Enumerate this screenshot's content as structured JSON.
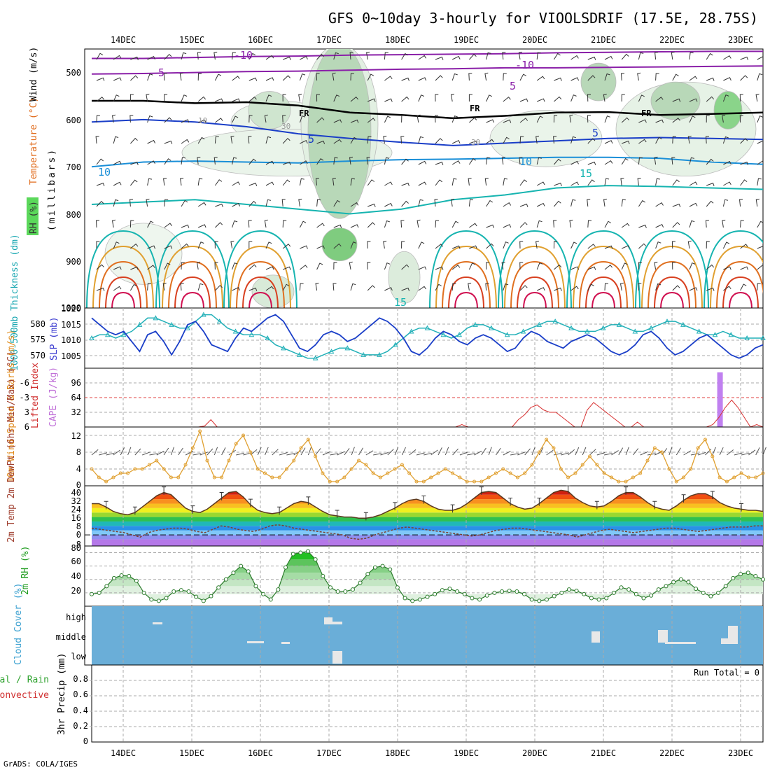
{
  "chart_data": {
    "type": "meteogram",
    "title": "GFS 0~10day 3-hourly for VIOOLSDRIF (17.5E, 28.75S)",
    "footer": "GrADS: COLA/IGES",
    "x_dates": [
      "14DEC",
      "15DEC",
      "16DEC",
      "17DEC",
      "18DEC",
      "19DEC",
      "20DEC",
      "21DEC",
      "22DEC",
      "23DEC"
    ],
    "panels": {
      "upper_air": {
        "ylabel_parts": [
          "RH (%)",
          "Temperature (°C)",
          "Wind (m/s)"
        ],
        "ylabel_unit": "(millibars)",
        "pressure_ticks": [
          "500",
          "600",
          "700",
          "800",
          "900",
          "1000"
        ],
        "pressure_range": [
          450,
          1000
        ],
        "contour_labels": [
          "-10",
          "-10",
          "5",
          "5",
          "5",
          "5",
          "10",
          "10",
          "15",
          "15",
          "FR",
          "FR",
          "FR",
          "30",
          "30",
          "10"
        ],
        "isotherms_mb": {
          "minus10": [
            470,
            470,
            468,
            466,
            465,
            463,
            462,
            461,
            460,
            458,
            457,
            456,
            455,
            455
          ],
          "minus5": [
            503,
            502,
            500,
            498,
            497,
            495,
            493,
            492,
            490,
            490,
            489,
            488,
            487,
            486
          ],
          "freezing": [
            560,
            560,
            565,
            563,
            570,
            585,
            590,
            597,
            592,
            585,
            584,
            590,
            588,
            585
          ],
          "plus5": [
            605,
            600,
            605,
            615,
            630,
            640,
            648,
            655,
            650,
            645,
            640,
            638,
            640,
            642
          ],
          "plus10": [
            700,
            690,
            688,
            690,
            692,
            688,
            685,
            684,
            682,
            680,
            680,
            682,
            690,
            695
          ],
          "plus15": [
            780,
            775,
            770,
            780,
            790,
            800,
            790,
            770,
            760,
            745,
            740,
            742,
            745,
            748
          ]
        }
      },
      "slp_thickness": {
        "ylabel_left": "1000-500mb Thickness (dm)",
        "ylabel_right": "SLP (mb)",
        "slp_ticks": [
          "1005",
          "1010",
          "1015",
          "1020"
        ],
        "thickness_ticks": [
          "570",
          "575",
          "580"
        ],
        "slp_range": [
          1002,
          1020
        ],
        "thickness_range": [
          566,
          584
        ],
        "slp": [
          1017,
          1015,
          1013,
          1012,
          1013,
          1010,
          1007,
          1012,
          1013,
          1010,
          1006,
          1010,
          1015,
          1016,
          1013,
          1009,
          1008,
          1007,
          1011,
          1014,
          1013,
          1015,
          1017,
          1018,
          1016,
          1012,
          1008,
          1007,
          1009,
          1012,
          1013,
          1012,
          1010,
          1011,
          1013,
          1015,
          1017,
          1016,
          1014,
          1011,
          1007,
          1006,
          1008,
          1011,
          1013,
          1012,
          1010,
          1009,
          1011,
          1012,
          1011,
          1009,
          1007,
          1008,
          1011,
          1013,
          1012,
          1010,
          1009,
          1008,
          1010,
          1011,
          1012,
          1011,
          1009,
          1007,
          1006,
          1007,
          1009,
          1012,
          1013,
          1011,
          1008,
          1006,
          1007,
          1009,
          1011,
          1012,
          1010,
          1008,
          1006,
          1005,
          1006,
          1008,
          1009
        ],
        "thickness": [
          575,
          576,
          576,
          575,
          576,
          577,
          579,
          581,
          581,
          580,
          579,
          578,
          578,
          580,
          582,
          582,
          580,
          578,
          577,
          576,
          576,
          576,
          575,
          573,
          572,
          571,
          570,
          569,
          569,
          570,
          571,
          572,
          572,
          571,
          570,
          570,
          570,
          571,
          573,
          575,
          577,
          578,
          578,
          577,
          576,
          575,
          576,
          578,
          579,
          579,
          578,
          577,
          576,
          576,
          577,
          578,
          579,
          580,
          580,
          579,
          578,
          577,
          577,
          577,
          578,
          579,
          579,
          578,
          577,
          577,
          578,
          579,
          580,
          580,
          579,
          578,
          577,
          576,
          576,
          577,
          576,
          575,
          575,
          575,
          575
        ]
      },
      "cape_li": {
        "ylabel_left": "Lifted Index",
        "ylabel_right": "CAPE (J/kg)",
        "li_ticks": [
          "-6",
          "-3",
          "0",
          "3",
          "6"
        ],
        "cape_ticks": [
          "32",
          "64",
          "96"
        ],
        "li_range": [
          -6,
          6
        ],
        "lifted_index": [
          6,
          6,
          6,
          6,
          6,
          6,
          6,
          6,
          6,
          6,
          6,
          6,
          6,
          6,
          6,
          6,
          6,
          6,
          5.8,
          4.5,
          6,
          6,
          6,
          6,
          6,
          6,
          6,
          6,
          6,
          6,
          6,
          6,
          6,
          6,
          6,
          6,
          6,
          6,
          6,
          6,
          6,
          6,
          6,
          6,
          6,
          6,
          6,
          6,
          6,
          6,
          6,
          6,
          6,
          6,
          6,
          6,
          6,
          6,
          6,
          5.5,
          6,
          6,
          6,
          6,
          6,
          6,
          6,
          6,
          4.5,
          3.5,
          2.0,
          1.5,
          2.5,
          3,
          3,
          4,
          5,
          6,
          6,
          2.5,
          1,
          2,
          3,
          4,
          5,
          6,
          6,
          5,
          6,
          6,
          6,
          6,
          6,
          6,
          6,
          6,
          6,
          6,
          6,
          5.5,
          4,
          2,
          0.5,
          2,
          4,
          6,
          5.5,
          6
        ],
        "cape_spike": {
          "date_index": 8.7,
          "value": 100
        }
      },
      "wind10m": {
        "ylabel": "10m Wind Speed & Barbs (m/s)",
        "ticks": [
          "0",
          "4",
          "8",
          "12"
        ],
        "range": [
          0,
          14
        ],
        "speed": [
          4,
          2,
          1,
          2,
          3,
          3,
          4,
          4,
          5,
          6,
          4,
          2,
          2,
          5,
          9,
          13,
          6,
          2,
          2,
          6,
          10,
          12,
          8,
          4,
          3,
          2,
          2,
          4,
          6,
          9,
          11,
          7,
          3,
          1,
          1,
          2,
          4,
          6,
          5,
          3,
          2,
          3,
          4,
          5,
          3,
          1,
          1,
          2,
          3,
          4,
          3,
          2,
          1,
          1,
          1,
          2,
          3,
          4,
          3,
          2,
          3,
          5,
          8,
          11,
          9,
          4,
          2,
          3,
          5,
          7,
          5,
          3,
          2,
          1,
          1,
          2,
          3,
          6,
          9,
          8,
          4,
          1,
          2,
          4,
          9,
          11,
          7,
          2,
          1,
          2,
          3,
          2,
          2,
          3
        ]
      },
      "temp2m": {
        "ylabel": "2m Temp 2m DewPt (6hr Min/Max) (°C)",
        "ticks": [
          "-8",
          "0",
          "8",
          "16",
          "24",
          "32",
          "40"
        ],
        "range": [
          -10,
          44
        ],
        "temp": [
          28,
          28,
          25,
          21,
          19,
          18,
          20,
          25,
          30,
          35,
          38,
          36,
          30,
          24,
          21,
          20,
          23,
          28,
          33,
          38,
          39,
          34,
          27,
          22,
          20,
          19,
          20,
          24,
          28,
          30,
          29,
          25,
          21,
          18,
          17,
          16,
          16,
          15,
          15,
          16,
          18,
          21,
          24,
          28,
          31,
          32,
          30,
          26,
          23,
          22,
          22,
          24,
          28,
          33,
          38,
          39,
          38,
          33,
          28,
          25,
          23,
          24,
          28,
          33,
          38,
          40,
          39,
          33,
          29,
          26,
          25,
          26,
          30,
          35,
          38,
          38,
          34,
          29,
          25,
          23,
          22,
          26,
          31,
          35,
          37,
          37,
          34,
          29,
          26,
          24,
          23,
          22,
          22,
          21
        ],
        "dewpoint": [
          6,
          5,
          4,
          3,
          2,
          0,
          -2,
          2,
          4,
          5,
          6,
          6,
          5,
          3,
          2,
          5,
          8,
          7,
          5,
          4,
          3,
          5,
          8,
          9,
          8,
          6,
          5,
          4,
          3,
          2,
          1,
          0,
          -3,
          -4,
          -3,
          0,
          2,
          4,
          6,
          7,
          6,
          5,
          4,
          3,
          2,
          1,
          0,
          -1,
          0,
          2,
          4,
          5,
          6,
          6,
          5,
          4,
          3,
          2,
          1,
          0,
          -2,
          0,
          2,
          4,
          5,
          4,
          3,
          2,
          3,
          4,
          5,
          6,
          6,
          5,
          4,
          3,
          4,
          5,
          6,
          7,
          7,
          7,
          8,
          8
        ]
      },
      "rh2m": {
        "ylabel": "2m RH (%)",
        "ticks": [
          "20",
          "40",
          "60",
          "80"
        ],
        "range": [
          0,
          90
        ],
        "rh": [
          18,
          20,
          30,
          42,
          46,
          45,
          38,
          20,
          10,
          8,
          12,
          22,
          24,
          22,
          14,
          8,
          15,
          28,
          40,
          50,
          60,
          52,
          30,
          18,
          10,
          25,
          58,
          78,
          80,
          82,
          70,
          45,
          28,
          22,
          22,
          25,
          35,
          48,
          58,
          60,
          55,
          28,
          12,
          8,
          10,
          14,
          18,
          24,
          26,
          22,
          18,
          12,
          10,
          16,
          20,
          22,
          23,
          22,
          18,
          10,
          8,
          10,
          15,
          20,
          25,
          23,
          18,
          12,
          10,
          12,
          20,
          28,
          25,
          18,
          12,
          16,
          25,
          30,
          36,
          40,
          36,
          26,
          20,
          15,
          20,
          30,
          42,
          48,
          50,
          45,
          40
        ]
      },
      "cloud_cover": {
        "ylabel": "Cloud Cover (%)",
        "levels": [
          "high",
          "middle",
          "low"
        ]
      },
      "precip": {
        "ylabel_left": "Total / Rain",
        "ylabel_left2": "Convective",
        "ylabel": "3hr Precip (mm)",
        "ticks": [
          "0",
          "0.2",
          "0.4",
          "0.6",
          "0.8"
        ],
        "range": [
          0,
          1.0
        ],
        "run_total_label": "Run Total = 0"
      }
    }
  }
}
